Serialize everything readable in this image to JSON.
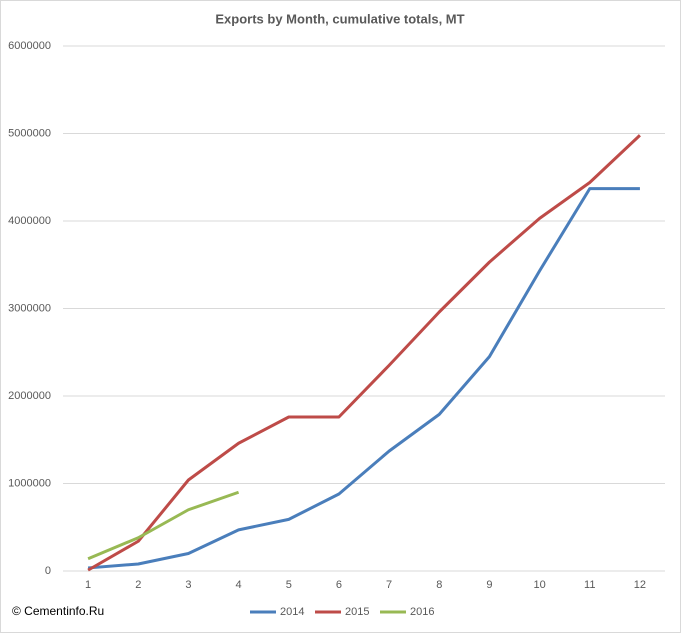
{
  "chart_data": {
    "type": "line",
    "title": "Exports by Month, cumulative totals, MT",
    "categories": [
      "1",
      "2",
      "3",
      "4",
      "5",
      "6",
      "7",
      "8",
      "9",
      "10",
      "11",
      "12"
    ],
    "series": [
      {
        "name": "2014",
        "color": "#4a7ebb",
        "values": [
          35000,
          80000,
          200000,
          470000,
          590000,
          880000,
          1370000,
          1790000,
          2450000,
          3430000,
          4370000,
          4370000
        ]
      },
      {
        "name": "2015",
        "color": "#be4b48",
        "values": [
          10000,
          340000,
          1040000,
          1460000,
          1760000,
          1760000,
          2350000,
          2960000,
          3530000,
          4030000,
          4440000,
          4980000
        ]
      },
      {
        "name": "2016",
        "color": "#98b954",
        "values": [
          140000,
          380000,
          700000,
          900000,
          null,
          null,
          null,
          null,
          null,
          null,
          null,
          null
        ]
      }
    ],
    "ylim": [
      0,
      6000000
    ],
    "yticks": [
      0,
      1000000,
      2000000,
      3000000,
      4000000,
      5000000,
      6000000
    ],
    "grid": true,
    "legend": "bottom",
    "watermark": "© Cementinfo.Ru"
  }
}
